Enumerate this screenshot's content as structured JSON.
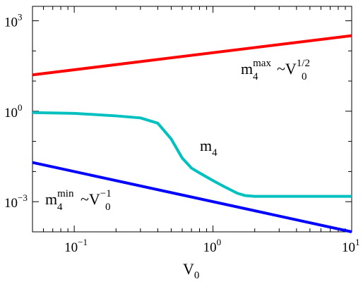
{
  "chart_data": {
    "type": "line",
    "xscale": "log",
    "yscale": "log",
    "xlim": [
      0.05,
      10
    ],
    "ylim": [
      0.0001,
      3000
    ],
    "xlabel": {
      "base": "V",
      "sub": "0"
    },
    "x_ticks": [
      {
        "value": 0.1,
        "base": "10",
        "exp": "−1"
      },
      {
        "value": 1,
        "base": "10",
        "exp": "0"
      },
      {
        "value": 10,
        "base": "10",
        "exp": "1"
      }
    ],
    "y_ticks": [
      {
        "value": 0.001,
        "base": "10",
        "exp": "−3"
      },
      {
        "value": 1,
        "base": "10",
        "exp": "0"
      },
      {
        "value": 1000,
        "base": "10",
        "exp": "3"
      }
    ],
    "grid": false,
    "series": [
      {
        "id": "m4max",
        "color": "#ff0000",
        "x": [
          0.05,
          10
        ],
        "y": [
          16,
          320
        ]
      },
      {
        "id": "m4",
        "color": "#00c0c0",
        "x": [
          0.05,
          0.1,
          0.2,
          0.3,
          0.4,
          0.5,
          0.6,
          0.7,
          0.8,
          1.0,
          1.2,
          1.5,
          1.7,
          2.0,
          3.0,
          5.0,
          10.0
        ],
        "y": [
          0.9,
          0.85,
          0.7,
          0.6,
          0.4,
          0.12,
          0.028,
          0.013,
          0.009,
          0.005,
          0.0032,
          0.0019,
          0.0016,
          0.0015,
          0.0015,
          0.0015,
          0.0015
        ]
      },
      {
        "id": "m4min",
        "color": "#0000ff",
        "x": [
          0.05,
          10
        ],
        "y": [
          0.02,
          0.0001
        ]
      }
    ],
    "annotations": {
      "m4max": {
        "base": "m",
        "sub": "4",
        "sup": "max",
        "tilde": "~",
        "v": "V",
        "vsub": "0",
        "vsup": "1/2"
      },
      "m4": {
        "base": "m",
        "sub": "4"
      },
      "m4min": {
        "base": "m",
        "sub": "4",
        "sup": "min",
        "tilde": "~",
        "v": "V",
        "vsub": "0",
        "vsup": "−1"
      }
    }
  }
}
